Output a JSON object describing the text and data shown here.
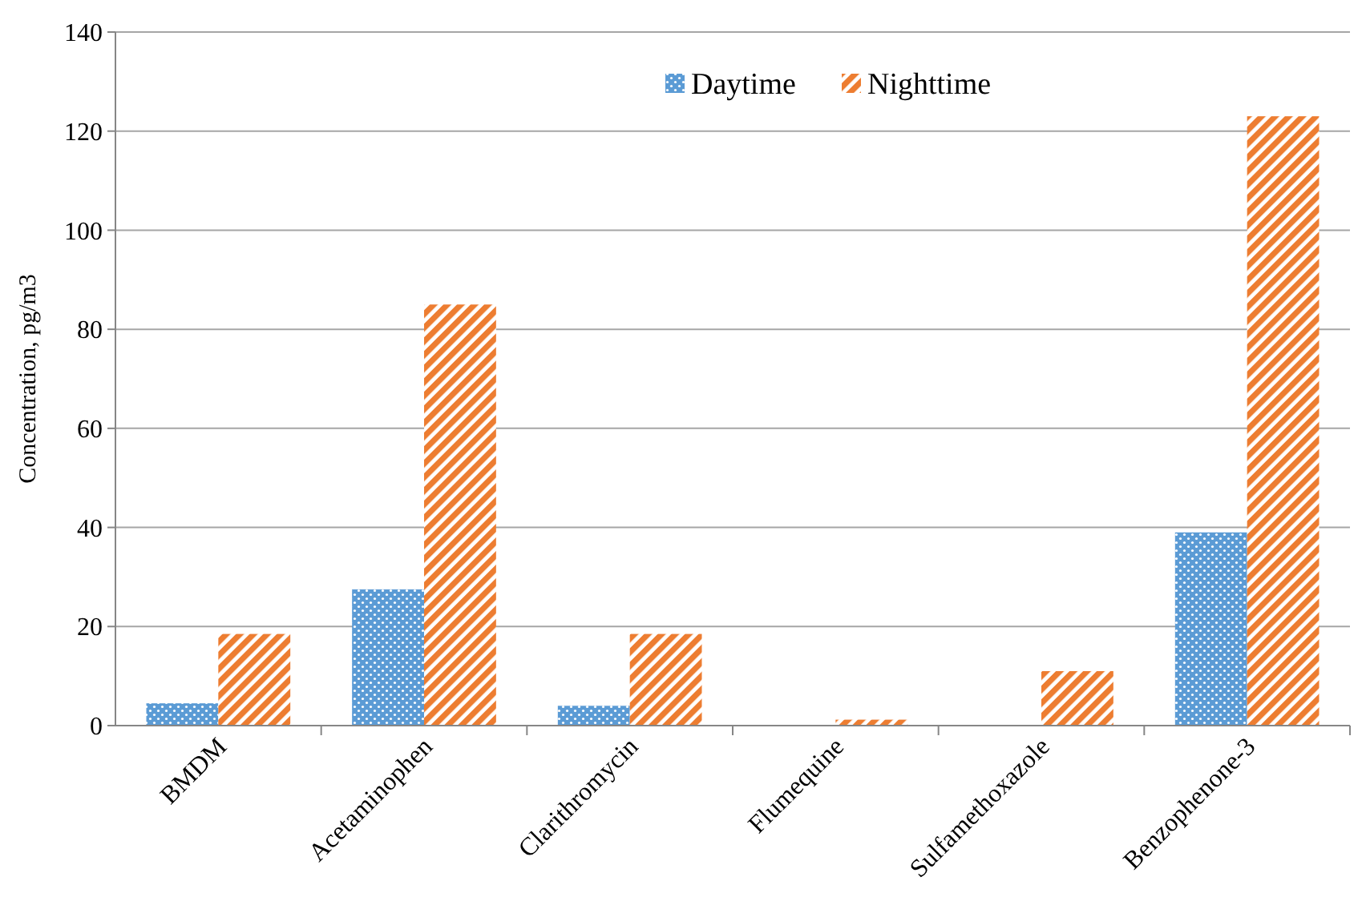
{
  "chart_data": {
    "type": "bar",
    "ylabel": "Concentration, pg/m3",
    "categories": [
      "BMDM",
      "Acetaminophen",
      "Clarithromycin",
      "Flumequine",
      "Sulfamethoxazole",
      "Benzophenone-3"
    ],
    "series": [
      {
        "name": "Daytime",
        "color": "#5b9bd5",
        "values": [
          4.5,
          27.5,
          4,
          0,
          0,
          39
        ]
      },
      {
        "name": "Nighttime",
        "color": "#ed7d31",
        "values": [
          18.5,
          85,
          18.5,
          1.2,
          11,
          123
        ]
      }
    ],
    "ylim": [
      0,
      140
    ],
    "yticks": [
      0,
      20,
      40,
      60,
      80,
      100,
      120,
      140
    ],
    "grid": "y",
    "legend": "top"
  }
}
